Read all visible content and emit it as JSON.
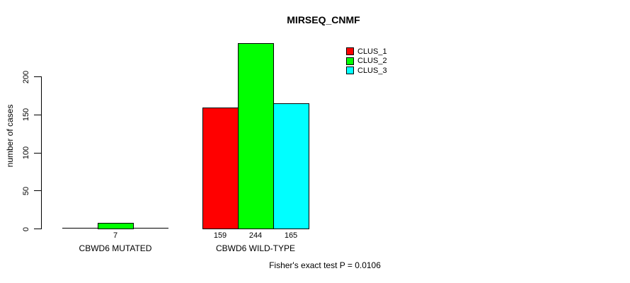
{
  "chart_data": {
    "type": "bar",
    "title": "MIRSEQ_CNMF",
    "ylabel": "number of cases",
    "xlabel": "",
    "ylim": [
      0,
      200
    ],
    "yticks": [
      0,
      50,
      100,
      150,
      200
    ],
    "categories": [
      "CBWD6 MUTATED",
      "CBWD6 WILD-TYPE"
    ],
    "series": [
      {
        "name": "CLUS_1",
        "color": "#ff0000",
        "values": [
          0,
          159
        ]
      },
      {
        "name": "CLUS_2",
        "color": "#00ff00",
        "values": [
          7,
          244
        ]
      },
      {
        "name": "CLUS_3",
        "color": "#00ffff",
        "values": [
          0,
          165
        ]
      }
    ],
    "bar_labels": [
      [
        "",
        "7",
        ""
      ],
      [
        "159",
        "244",
        "165"
      ]
    ],
    "footnote": "Fisher's exact test P = 0.0106",
    "legend_position": "top-right",
    "grid": false,
    "axis_color": "#000000",
    "background_color": "#ffffff"
  }
}
